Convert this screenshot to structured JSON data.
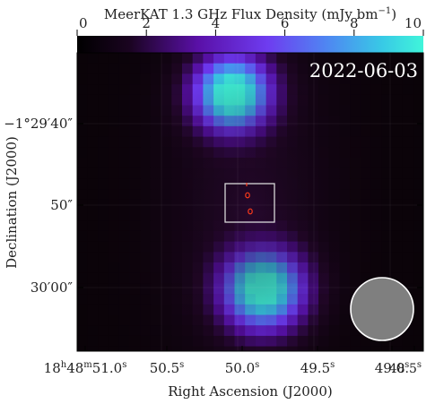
{
  "colorbar": {
    "label": "MeerKAT 1.3 GHz Flux Density (mJy bm",
    "label_sup": "−1",
    "label_close": ")",
    "ticks": [
      "0",
      "2",
      "4",
      "6",
      "8",
      "10"
    ],
    "range": [
      0,
      10
    ]
  },
  "panel": {
    "date": "2022-06-03"
  },
  "axes": {
    "ylabel": "Declination (J2000)",
    "xlabel": "Right Ascension (J2000)",
    "y_ticks": [
      {
        "main": "−1°29′40″"
      },
      {
        "main": "50″"
      },
      {
        "main": "30′00″"
      }
    ],
    "x_ticks": [
      {
        "pre": "18",
        "h": "h",
        "mid": "48",
        "m": "m",
        "post": "51.0",
        "s": "s"
      },
      {
        "main": "50.5",
        "s": "s"
      },
      {
        "main": "50.0",
        "s": "s"
      },
      {
        "main": "49.5",
        "s": "s"
      },
      {
        "main": "49.0",
        "s": "s"
      },
      {
        "main": "48.5",
        "s": "s"
      }
    ]
  },
  "colors": {
    "background": "#0a0308",
    "bbox_outline": "#d8d8d8",
    "beam_fill": "#7f7f7f",
    "beam_edge": "#ffffff",
    "contour": "#ff3b1a"
  }
}
